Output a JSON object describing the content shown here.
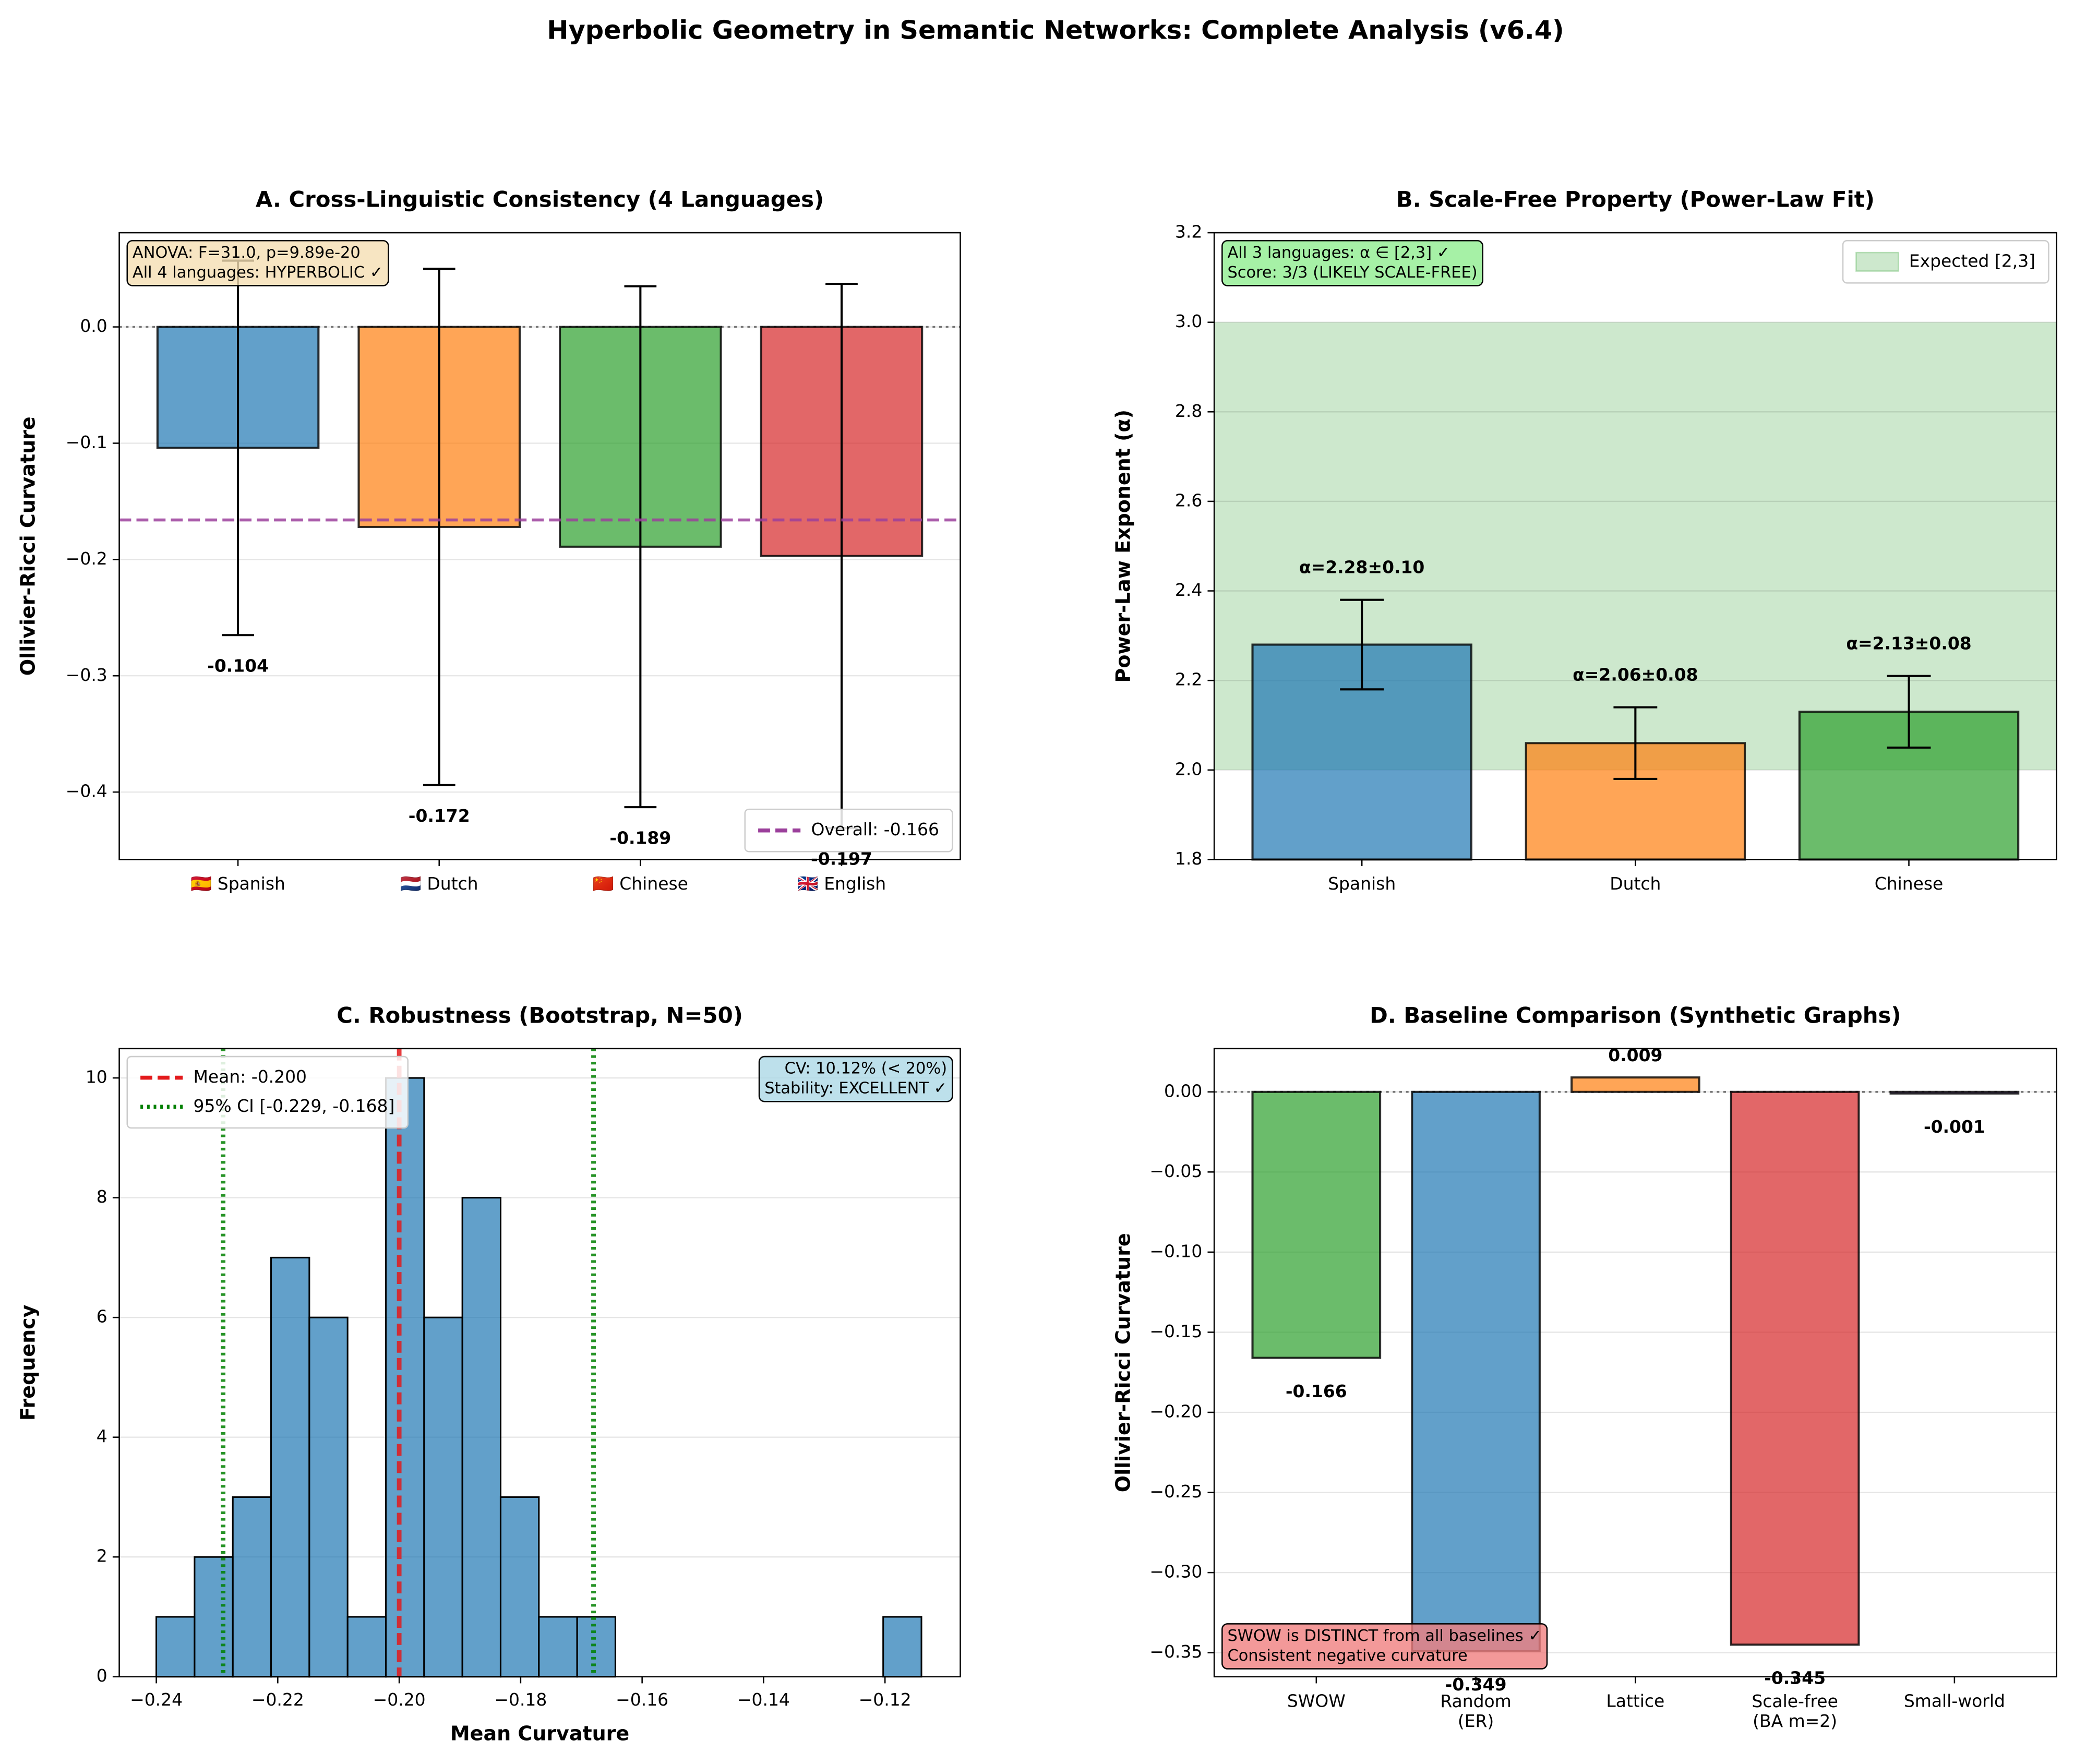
{
  "title": "Hyperbolic Geometry in Semantic Networks: Complete Analysis (v6.4)",
  "chart_data": [
    {
      "type": "bar",
      "title": "A. Cross-Linguistic Consistency (4 Languages)",
      "ylabel": "Ollivier-Ricci Curvature",
      "categories": [
        "🇪🇸 Spanish",
        "🇳🇱 Dutch",
        "🇨🇳 Chinese",
        "🇬🇧 English"
      ],
      "values": [
        -0.104,
        -0.172,
        -0.189,
        -0.197
      ],
      "errors": [
        0.161,
        0.222,
        0.224,
        0.234
      ],
      "colors": [
        "#1f77b4",
        "#ff7f0e",
        "#2ca02c",
        "#d62728"
      ],
      "ylim": [
        -0.458,
        0.081
      ],
      "yticks": [
        {
          "value": -0.4,
          "label": "−0.4"
        },
        {
          "value": -0.3,
          "label": "−0.3"
        },
        {
          "value": -0.2,
          "label": "−0.2"
        },
        {
          "value": -0.1,
          "label": "−0.1"
        },
        {
          "value": 0,
          "label": "0.0"
        }
      ],
      "grid": true,
      "zero_line": true,
      "reference_lines": [
        {
          "name": "Overall: -0.166",
          "values": [
            -0.166
          ],
          "color": "#9b3f9b",
          "style": "dashed"
        }
      ],
      "legend": "lower right",
      "annotation": [
        "ANOVA: F=31.0, p=9.89e-20",
        "All 4 languages: HYPERBOLIC ✓"
      ],
      "annotation_color": "#f5deb3",
      "annotation_corner": "upper left"
    },
    {
      "type": "bar",
      "title": "B. Scale-Free Property (Power-Law Fit)",
      "ylabel": "Power-Law Exponent (α)",
      "categories": [
        "Spanish",
        "Dutch",
        "Chinese"
      ],
      "values": [
        2.28,
        2.06,
        2.13
      ],
      "errors": [
        0.1,
        0.08,
        0.08
      ],
      "value_labels": [
        "α=2.28±0.10",
        "α=2.06±0.08",
        "α=2.13±0.08"
      ],
      "colors": [
        "#1f77b4",
        "#ff7f0e",
        "#2ca02c"
      ],
      "ylim": [
        1.8,
        3.2
      ],
      "yticks": [
        1.8,
        {
          "value": 2,
          "label": "2.0"
        },
        2.2,
        2.4,
        2.6,
        2.8,
        {
          "value": 3,
          "label": "3.0"
        },
        3.2
      ],
      "grid": true,
      "span": {
        "name": "Expected [2,3]",
        "range": [
          2,
          3
        ],
        "color": "#2ca02c"
      },
      "legend": "upper right",
      "annotation": [
        "All 3 languages: α ∈ [2,3] ✓",
        "Score: 3/3 (LIKELY SCALE-FREE)"
      ],
      "annotation_color": "#90ee90",
      "annotation_corner": "upper left"
    },
    {
      "type": "histogram",
      "title": "C. Robustness (Bootstrap, N=50)",
      "xlabel": "Mean Curvature",
      "ylabel": "Frequency",
      "bins": [
        -0.24,
        -0.2337,
        -0.2274,
        -0.2211,
        -0.2148,
        -0.2085,
        -0.2022,
        -0.1959,
        -0.1896,
        -0.1833,
        -0.177,
        -0.1707,
        -0.1644,
        -0.1581,
        -0.1518,
        -0.1455,
        -0.1392,
        -0.1329,
        -0.1266,
        -0.1203,
        -0.114
      ],
      "values": [
        1,
        2,
        3,
        7,
        6,
        1,
        10,
        6,
        8,
        3,
        1,
        1,
        0,
        0,
        0,
        0,
        0,
        0,
        0,
        1
      ],
      "color": "#1f77b4",
      "xlim": [
        -0.2461,
        -0.1076
      ],
      "xticks": [
        {
          "value": -0.24,
          "label": "−0.24"
        },
        {
          "value": -0.22,
          "label": "−0.22"
        },
        {
          "value": -0.2,
          "label": "−0.20"
        },
        {
          "value": -0.18,
          "label": "−0.18"
        },
        {
          "value": -0.16,
          "label": "−0.16"
        },
        {
          "value": -0.14,
          "label": "−0.14"
        },
        {
          "value": -0.12,
          "label": "−0.12"
        }
      ],
      "ylim": [
        0,
        10.49
      ],
      "yticks": [
        0,
        2,
        4,
        6,
        8,
        10
      ],
      "grid": true,
      "reference_lines": [
        {
          "name": "Mean: -0.200",
          "values": [
            -0.2
          ],
          "color": "#e31a1c",
          "style": "dashed"
        },
        {
          "name": "95% CI [-0.229, -0.168]",
          "values": [
            -0.229,
            -0.168
          ],
          "color": "#008000",
          "style": "dotted"
        }
      ],
      "legend": "upper left",
      "annotation": [
        "CV: 10.12% (< 20%)",
        "Stability: EXCELLENT ✓"
      ],
      "annotation_color": "#add8e6",
      "annotation_corner": "upper right"
    },
    {
      "type": "bar",
      "title": "D. Baseline Comparison (Synthetic Graphs)",
      "ylabel": "Ollivier-Ricci Curvature",
      "categories": [
        "SWOW",
        "Random\n(ER)",
        "Lattice",
        "Scale-free\n(BA m=2)",
        "Small-world"
      ],
      "values": [
        -0.166,
        -0.349,
        0.009,
        -0.345,
        -0.001
      ],
      "colors": [
        "#2ca02c",
        "#1f77b4",
        "#ff7f0e",
        "#d62728",
        "#9467bd"
      ],
      "ylim": [
        -0.365,
        0.027
      ],
      "yticks": [
        {
          "value": -0.35,
          "label": "−0.35"
        },
        {
          "value": -0.3,
          "label": "−0.30"
        },
        {
          "value": -0.25,
          "label": "−0.25"
        },
        {
          "value": -0.2,
          "label": "−0.20"
        },
        {
          "value": -0.15,
          "label": "−0.15"
        },
        {
          "value": -0.1,
          "label": "−0.10"
        },
        {
          "value": -0.05,
          "label": "−0.05"
        },
        {
          "value": 0,
          "label": "0.00"
        }
      ],
      "grid": true,
      "zero_line": true,
      "annotation": [
        "SWOW is DISTINCT from all baselines ✓",
        "Consistent negative curvature"
      ],
      "annotation_color": "#f08080",
      "annotation_corner": "lower left"
    }
  ]
}
